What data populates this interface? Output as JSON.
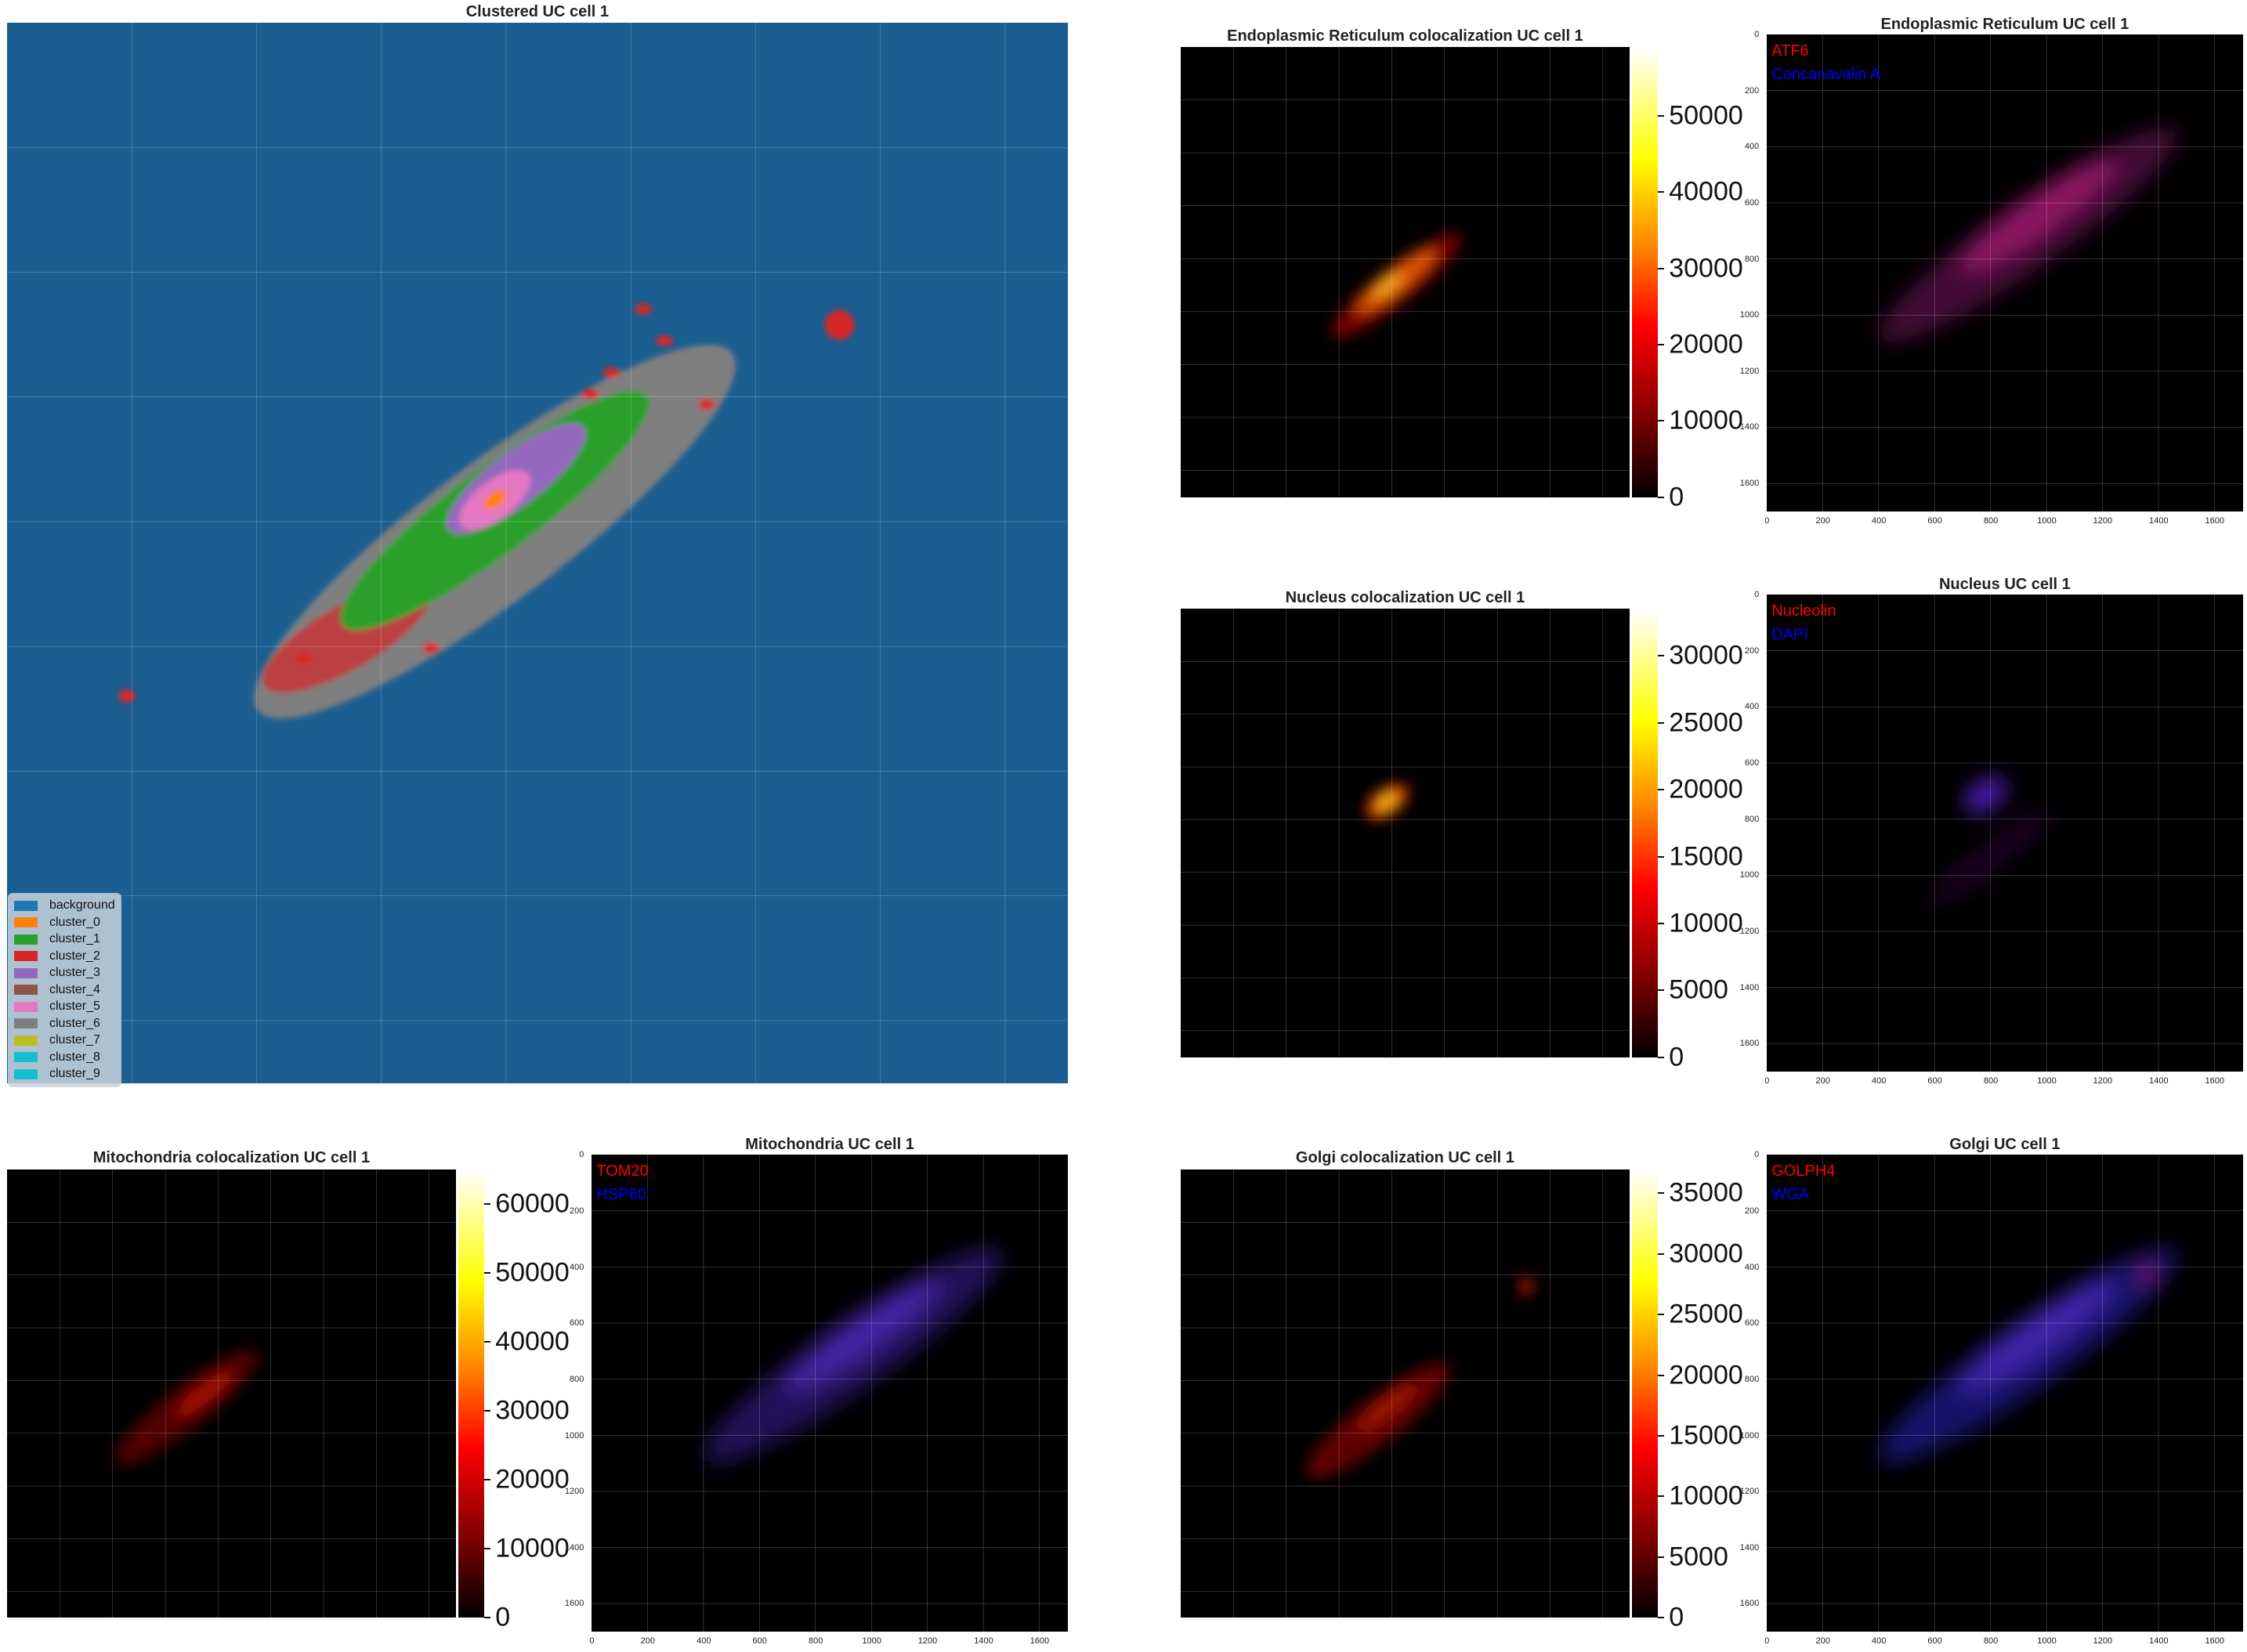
{
  "chart_data": [
    {
      "id": "clustered",
      "type": "heatmap",
      "title": "Clustered UC cell 1",
      "legend": {
        "placement": "lower-left",
        "entries": [
          {
            "name": "background",
            "color": "#1f77b4"
          },
          {
            "name": "cluster_0",
            "color": "#ff7f0e"
          },
          {
            "name": "cluster_1",
            "color": "#2ca02c"
          },
          {
            "name": "cluster_2",
            "color": "#d62728"
          },
          {
            "name": "cluster_3",
            "color": "#9467bd"
          },
          {
            "name": "cluster_4",
            "color": "#8c564b"
          },
          {
            "name": "cluster_5",
            "color": "#e377c2"
          },
          {
            "name": "cluster_6",
            "color": "#7f7f7f"
          },
          {
            "name": "cluster_7",
            "color": "#bcbd22"
          },
          {
            "name": "cluster_8",
            "color": "#17becf"
          },
          {
            "name": "cluster_9",
            "color": "#17becf"
          }
        ]
      },
      "grid": true,
      "background_color": "#1b5e91"
    },
    {
      "id": "er_coloc",
      "type": "heatmap",
      "title": "Endoplasmic Reticulum colocalization UC cell 1",
      "colormap": "hot",
      "colorbar": {
        "ticks": [
          "0",
          "10000",
          "20000",
          "30000",
          "40000",
          "50000"
        ],
        "max": 59000
      },
      "grid": true
    },
    {
      "id": "er_merge",
      "type": "heatmap",
      "title": "Endoplasmic Reticulum UC cell 1",
      "channels": [
        {
          "name": "ATF6",
          "color": "#ff0000"
        },
        {
          "name": "Concanavalin A",
          "color": "#0000ff"
        }
      ],
      "xticks": [
        "0",
        "200",
        "400",
        "600",
        "800",
        "1000",
        "1200",
        "1400",
        "1600"
      ],
      "yticks": [
        "0",
        "200",
        "400",
        "600",
        "800",
        "1000",
        "1200",
        "1400",
        "1600"
      ],
      "xlim": [
        0,
        1700
      ],
      "ylim": [
        1700,
        0
      ],
      "grid": true
    },
    {
      "id": "nuc_coloc",
      "type": "heatmap",
      "title": "Nucleus colocalization UC cell 1",
      "colormap": "hot",
      "colorbar": {
        "ticks": [
          "0",
          "5000",
          "10000",
          "15000",
          "20000",
          "25000",
          "30000"
        ],
        "max": 33500
      },
      "grid": true
    },
    {
      "id": "nuc_merge",
      "type": "heatmap",
      "title": "Nucleus UC cell 1",
      "channels": [
        {
          "name": "Nucleolin",
          "color": "#ff0000"
        },
        {
          "name": "DAPI",
          "color": "#0000ff"
        }
      ],
      "xticks": [
        "0",
        "200",
        "400",
        "600",
        "800",
        "1000",
        "1200",
        "1400",
        "1600"
      ],
      "yticks": [
        "0",
        "200",
        "400",
        "600",
        "800",
        "1000",
        "1200",
        "1400",
        "1600"
      ],
      "xlim": [
        0,
        1700
      ],
      "ylim": [
        1700,
        0
      ],
      "grid": true
    },
    {
      "id": "mito_coloc",
      "type": "heatmap",
      "title": "Mitochondria colocalization UC cell 1",
      "colormap": "hot",
      "colorbar": {
        "ticks": [
          "0",
          "10000",
          "20000",
          "30000",
          "40000",
          "50000",
          "60000"
        ],
        "max": 65000
      },
      "grid": true
    },
    {
      "id": "mito_merge",
      "type": "heatmap",
      "title": "Mitochondria UC cell 1",
      "channels": [
        {
          "name": "TOM20",
          "color": "#ff0000"
        },
        {
          "name": "HSP60",
          "color": "#0000ff"
        }
      ],
      "xticks": [
        "0",
        "200",
        "400",
        "600",
        "800",
        "1000",
        "1200",
        "1400",
        "1600"
      ],
      "yticks": [
        "0",
        "200",
        "400",
        "600",
        "800",
        "1000",
        "1200",
        "1400",
        "1600"
      ],
      "xlim": [
        0,
        1700
      ],
      "ylim": [
        1700,
        0
      ],
      "grid": true
    },
    {
      "id": "golgi_coloc",
      "type": "heatmap",
      "title": "Golgi colocalization UC cell 1",
      "colormap": "hot",
      "colorbar": {
        "ticks": [
          "0",
          "5000",
          "10000",
          "15000",
          "20000",
          "25000",
          "30000",
          "35000"
        ],
        "max": 37000
      },
      "grid": true
    },
    {
      "id": "golgi_merge",
      "type": "heatmap",
      "title": "Golgi UC cell 1",
      "channels": [
        {
          "name": "GOLPH4",
          "color": "#ff0000"
        },
        {
          "name": "WGA",
          "color": "#0000ff"
        }
      ],
      "xticks": [
        "0",
        "200",
        "400",
        "600",
        "800",
        "1000",
        "1200",
        "1400",
        "1600"
      ],
      "yticks": [
        "0",
        "200",
        "400",
        "600",
        "800",
        "1000",
        "1200",
        "1400",
        "1600"
      ],
      "xlim": [
        0,
        1700
      ],
      "ylim": [
        1700,
        0
      ],
      "grid": true
    }
  ]
}
